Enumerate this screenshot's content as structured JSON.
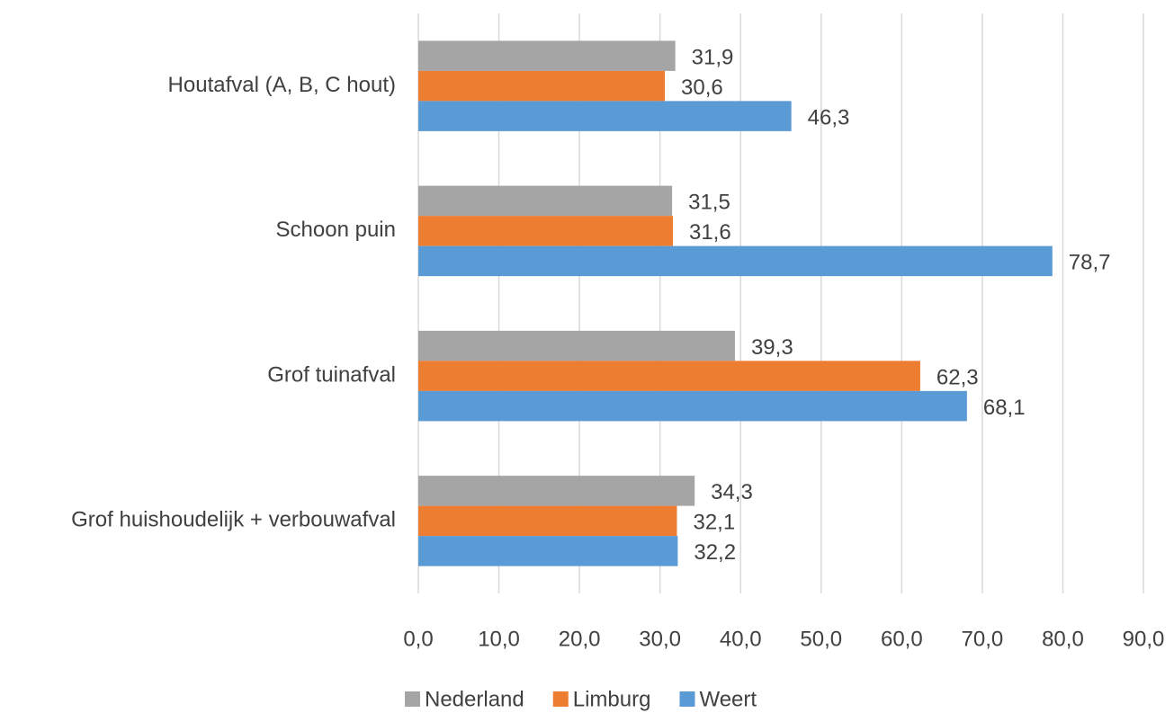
{
  "chart_data": {
    "type": "hbar",
    "categories": [
      "Houtafval (A, B, C hout)",
      "Schoon puin",
      "Grof tuinafval",
      "Grof huishoudelijk + verbouwafval"
    ],
    "series": [
      {
        "name": "Nederland",
        "color": "#a5a5a5",
        "values": [
          31.9,
          31.5,
          39.3,
          34.3
        ],
        "value_labels": [
          "31,9",
          "31,5",
          "39,3",
          "34,3"
        ]
      },
      {
        "name": "Limburg",
        "color": "#ed7d31",
        "values": [
          30.6,
          31.6,
          62.3,
          32.1
        ],
        "value_labels": [
          "30,6",
          "31,6",
          "62,3",
          "32,1"
        ]
      },
      {
        "name": "Weert",
        "color": "#5b9bd5",
        "values": [
          46.3,
          78.7,
          68.1,
          32.2
        ],
        "value_labels": [
          "46,3",
          "78,7",
          "68,1",
          "32,2"
        ]
      }
    ],
    "xlim": [
      0,
      90
    ],
    "xticks": [
      {
        "value": 0,
        "label": "0,0"
      },
      {
        "value": 10,
        "label": "10,0"
      },
      {
        "value": 20,
        "label": "20,0"
      },
      {
        "value": 30,
        "label": "30,0"
      },
      {
        "value": 40,
        "label": "40,0"
      },
      {
        "value": 50,
        "label": "50,0"
      },
      {
        "value": 60,
        "label": "60,0"
      },
      {
        "value": 70,
        "label": "70,0"
      },
      {
        "value": 80,
        "label": "80,0"
      },
      {
        "value": 90,
        "label": "90,0"
      }
    ],
    "grid": true,
    "legend": "bottom"
  }
}
